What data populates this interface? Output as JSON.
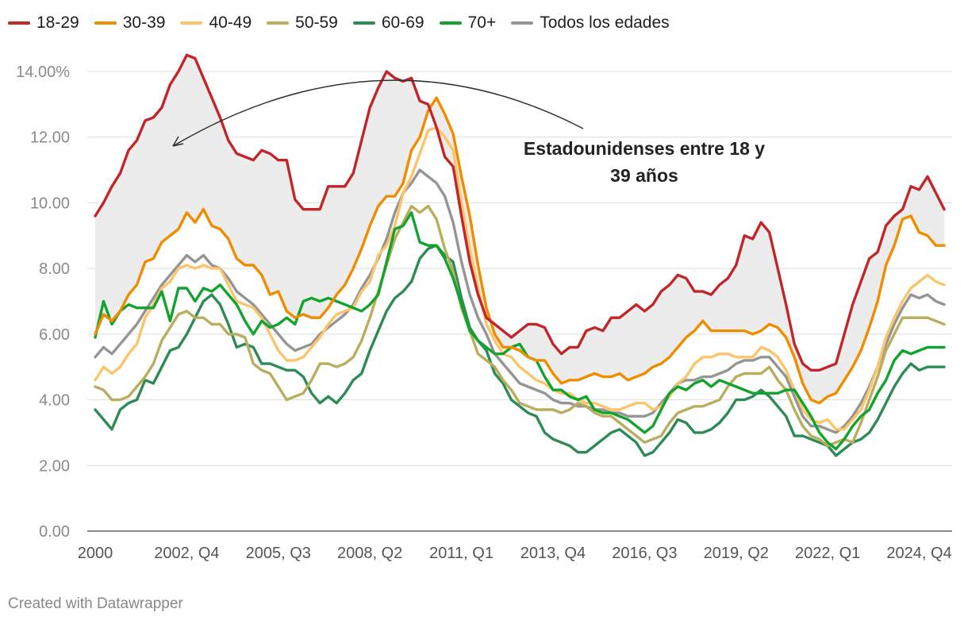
{
  "chart_data": {
    "type": "line",
    "ylim": [
      0,
      14
    ],
    "yticks": [
      0,
      2,
      4,
      6,
      8,
      10,
      12,
      14
    ],
    "ytick_labels": [
      "0.00",
      "2.00",
      "4.00",
      "6.00",
      "8.00",
      "10.00",
      "12.00",
      "14.00%"
    ],
    "x_tick_labels": [
      "2000",
      "2002, Q4",
      "2005, Q3",
      "2008, Q2",
      "2011, Q1",
      "2013, Q4",
      "2016, Q3",
      "2019, Q2",
      "2022, Q1",
      "2024, Q4"
    ],
    "x_tick_index": [
      0,
      11,
      22,
      33,
      44,
      55,
      66,
      77,
      88,
      99
    ],
    "x_start": "2000, Q1",
    "x_end": "2024, Q4",
    "grid": true,
    "legend_position": "top",
    "shaded_band": {
      "between": [
        "30-39",
        "18-29"
      ],
      "color": "#ececec"
    },
    "annotation": {
      "lines": [
        "Estadounidenses entre 18 y",
        "39 años"
      ]
    },
    "series": [
      {
        "name": "18-29",
        "color": "#c2262a",
        "values": [
          9.6,
          10.0,
          10.5,
          10.9,
          11.6,
          11.9,
          12.5,
          12.6,
          12.9,
          13.6,
          14.0,
          14.5,
          14.4,
          13.8,
          13.2,
          12.6,
          11.9,
          11.5,
          11.4,
          11.3,
          11.6,
          11.5,
          11.3,
          11.3,
          10.1,
          9.8,
          9.8,
          9.8,
          10.5,
          10.5,
          10.5,
          10.9,
          11.9,
          12.9,
          13.5,
          14.0,
          13.8,
          13.7,
          13.8,
          13.1,
          13.0,
          12.3,
          11.4,
          11.1,
          9.6,
          8.2,
          7.2,
          6.5,
          6.3,
          6.1,
          5.9,
          6.1,
          6.3,
          6.3,
          6.2,
          5.7,
          5.4,
          5.6,
          5.6,
          6.1,
          6.2,
          6.1,
          6.5,
          6.5,
          6.7,
          6.9,
          6.7,
          6.9,
          7.3,
          7.5,
          7.8,
          7.7,
          7.3,
          7.3,
          7.2,
          7.5,
          7.7,
          8.1,
          9.0,
          8.9,
          9.4,
          9.1,
          8.0,
          6.9,
          5.7,
          5.1,
          4.9,
          4.9,
          5.0,
          5.1,
          6.0,
          6.9,
          7.6,
          8.3,
          8.5,
          9.3,
          9.6,
          9.8,
          10.5,
          10.4,
          10.8,
          10.3,
          9.8
        ]
      },
      {
        "name": "30-39",
        "color": "#f08c00",
        "values": [
          6.0,
          6.6,
          6.4,
          6.7,
          7.2,
          7.5,
          8.2,
          8.3,
          8.8,
          9.0,
          9.2,
          9.7,
          9.4,
          9.8,
          9.3,
          9.2,
          8.9,
          8.3,
          8.1,
          8.1,
          7.8,
          7.2,
          7.3,
          6.7,
          6.5,
          6.6,
          6.5,
          6.5,
          6.8,
          7.2,
          7.5,
          8.0,
          8.6,
          9.3,
          9.9,
          10.2,
          10.2,
          10.6,
          11.6,
          12.0,
          12.8,
          13.2,
          12.7,
          12.1,
          10.8,
          9.6,
          8.1,
          6.8,
          6.0,
          5.6,
          5.6,
          5.5,
          5.3,
          5.2,
          5.2,
          4.8,
          4.5,
          4.6,
          4.6,
          4.7,
          4.8,
          4.7,
          4.7,
          4.8,
          4.6,
          4.7,
          4.8,
          5.0,
          5.1,
          5.3,
          5.6,
          5.9,
          6.1,
          6.4,
          6.1,
          6.1,
          6.1,
          6.1,
          6.1,
          6.0,
          6.1,
          6.3,
          6.2,
          5.9,
          5.3,
          4.5,
          4.0,
          3.9,
          4.1,
          4.2,
          4.6,
          5.0,
          5.5,
          6.2,
          7.0,
          8.1,
          8.7,
          9.5,
          9.6,
          9.1,
          9.0,
          8.7,
          8.7
        ]
      },
      {
        "name": "40-49",
        "color": "#fcc46b",
        "values": [
          4.6,
          5.0,
          4.8,
          5.0,
          5.4,
          5.7,
          6.5,
          6.9,
          7.4,
          7.6,
          8.0,
          8.1,
          8.0,
          8.1,
          8.0,
          8.0,
          7.5,
          7.0,
          6.9,
          6.8,
          6.5,
          6.0,
          5.5,
          5.2,
          5.2,
          5.3,
          5.6,
          5.9,
          6.3,
          6.6,
          6.7,
          6.8,
          7.3,
          7.6,
          8.4,
          8.7,
          9.3,
          10.3,
          10.8,
          11.5,
          12.2,
          12.3,
          12.0,
          11.6,
          10.0,
          8.6,
          7.4,
          6.3,
          5.8,
          5.4,
          5.3,
          5.0,
          4.8,
          4.6,
          4.5,
          4.3,
          4.2,
          4.2,
          4.0,
          3.9,
          3.9,
          3.8,
          3.7,
          3.7,
          3.8,
          3.9,
          3.9,
          3.7,
          3.8,
          4.1,
          4.5,
          4.7,
          5.1,
          5.3,
          5.3,
          5.4,
          5.4,
          5.3,
          5.3,
          5.3,
          5.6,
          5.5,
          5.3,
          4.9,
          4.3,
          3.7,
          3.4,
          3.3,
          3.4,
          3.1,
          3.1,
          3.4,
          3.7,
          4.3,
          5.0,
          5.9,
          6.5,
          7.0,
          7.4,
          7.6,
          7.8,
          7.6,
          7.5
        ]
      },
      {
        "name": "50-59",
        "color": "#b8ae5d",
        "values": [
          4.4,
          4.3,
          4.0,
          4.0,
          4.1,
          4.4,
          4.7,
          5.1,
          5.8,
          6.2,
          6.6,
          6.7,
          6.5,
          6.5,
          6.3,
          6.3,
          6.0,
          6.0,
          5.9,
          5.1,
          4.9,
          4.8,
          4.4,
          4.0,
          4.1,
          4.2,
          4.6,
          5.1,
          5.1,
          5.0,
          5.1,
          5.3,
          5.8,
          6.5,
          7.3,
          8.1,
          8.9,
          9.4,
          9.9,
          9.7,
          9.9,
          9.5,
          8.6,
          7.9,
          6.8,
          6.1,
          5.4,
          5.2,
          5.0,
          4.6,
          4.3,
          3.9,
          3.8,
          3.7,
          3.7,
          3.7,
          3.6,
          3.7,
          3.9,
          3.8,
          3.6,
          3.5,
          3.5,
          3.3,
          3.1,
          2.9,
          2.7,
          2.8,
          2.9,
          3.3,
          3.6,
          3.7,
          3.8,
          3.8,
          3.9,
          4.0,
          4.4,
          4.7,
          4.8,
          4.8,
          4.8,
          5.0,
          4.6,
          4.3,
          3.7,
          3.2,
          2.9,
          2.8,
          2.6,
          2.7,
          2.8,
          2.7,
          3.3,
          4.0,
          4.7,
          5.5,
          6.0,
          6.5,
          6.5,
          6.5,
          6.5,
          6.4,
          6.3
        ]
      },
      {
        "name": "60-69",
        "color": "#2e8b57",
        "values": [
          3.7,
          3.4,
          3.1,
          3.7,
          3.9,
          4.0,
          4.6,
          4.5,
          5.0,
          5.5,
          5.6,
          6.0,
          6.5,
          7.0,
          7.2,
          6.9,
          6.3,
          5.6,
          5.7,
          5.6,
          5.1,
          5.1,
          5.0,
          4.9,
          4.9,
          4.7,
          4.2,
          3.9,
          4.1,
          3.9,
          4.2,
          4.6,
          4.8,
          5.5,
          6.1,
          6.7,
          7.1,
          7.3,
          7.6,
          8.3,
          8.6,
          8.7,
          8.4,
          8.2,
          7.1,
          6.2,
          5.8,
          5.5,
          4.8,
          4.5,
          4.0,
          3.8,
          3.6,
          3.5,
          3.0,
          2.8,
          2.7,
          2.6,
          2.4,
          2.4,
          2.6,
          2.8,
          3.0,
          3.1,
          2.9,
          2.7,
          2.3,
          2.4,
          2.7,
          3.0,
          3.4,
          3.3,
          3.0,
          3.0,
          3.1,
          3.3,
          3.6,
          4.0,
          4.0,
          4.1,
          4.3,
          4.1,
          3.8,
          3.5,
          2.9,
          2.9,
          2.8,
          2.7,
          2.6,
          2.3,
          2.5,
          2.7,
          2.8,
          3.0,
          3.4,
          3.9,
          4.4,
          4.8,
          5.1,
          4.9,
          5.0,
          5.0,
          5.0
        ]
      },
      {
        "name": "70+",
        "color": "#12a32d",
        "values": [
          5.9,
          7.0,
          6.3,
          6.7,
          6.9,
          6.8,
          6.8,
          6.8,
          7.3,
          6.4,
          7.4,
          7.4,
          7.0,
          7.4,
          7.3,
          7.5,
          7.2,
          6.9,
          6.4,
          6.0,
          6.4,
          6.2,
          6.3,
          6.5,
          6.3,
          7.0,
          7.1,
          7.0,
          7.1,
          7.0,
          6.9,
          6.8,
          6.7,
          6.9,
          7.2,
          8.2,
          9.2,
          9.3,
          9.7,
          8.8,
          8.7,
          8.7,
          8.3,
          7.7,
          6.9,
          6.1,
          5.8,
          5.6,
          5.4,
          5.4,
          5.6,
          5.7,
          5.3,
          5.2,
          4.7,
          4.3,
          4.3,
          4.1,
          4.0,
          4.1,
          3.7,
          3.6,
          3.6,
          3.5,
          3.4,
          3.2,
          3.0,
          3.2,
          3.7,
          4.2,
          4.4,
          4.3,
          4.5,
          4.6,
          4.4,
          4.6,
          4.5,
          4.4,
          4.3,
          4.2,
          4.2,
          4.2,
          4.2,
          4.3,
          4.3,
          3.9,
          3.5,
          3.0,
          2.7,
          2.5,
          2.8,
          3.2,
          3.5,
          3.7,
          4.2,
          4.6,
          5.2,
          5.5,
          5.4,
          5.5,
          5.6,
          5.6,
          5.6
        ]
      },
      {
        "name": "Todos los edades",
        "color": "#959595",
        "values": [
          5.3,
          5.6,
          5.4,
          5.7,
          6.0,
          6.3,
          6.7,
          7.1,
          7.5,
          7.8,
          8.1,
          8.4,
          8.2,
          8.4,
          8.1,
          8.0,
          7.7,
          7.3,
          7.1,
          6.9,
          6.6,
          6.3,
          6.0,
          5.7,
          5.5,
          5.6,
          5.7,
          6.0,
          6.2,
          6.4,
          6.6,
          6.9,
          7.4,
          7.8,
          8.3,
          8.9,
          9.7,
          10.3,
          10.6,
          11.0,
          10.8,
          10.6,
          10.2,
          9.4,
          8.2,
          7.2,
          6.5,
          6.0,
          5.4,
          5.1,
          4.8,
          4.5,
          4.4,
          4.3,
          4.2,
          4.0,
          3.9,
          3.9,
          3.8,
          3.8,
          3.7,
          3.7,
          3.6,
          3.6,
          3.5,
          3.5,
          3.5,
          3.6,
          3.9,
          4.2,
          4.5,
          4.6,
          4.6,
          4.7,
          4.7,
          4.8,
          4.9,
          5.1,
          5.2,
          5.2,
          5.3,
          5.3,
          5.0,
          4.7,
          4.1,
          3.5,
          3.2,
          3.2,
          3.1,
          3.0,
          3.2,
          3.5,
          3.9,
          4.4,
          5.0,
          5.7,
          6.3,
          6.8,
          7.2,
          7.1,
          7.2,
          7.0,
          6.9
        ]
      }
    ]
  },
  "legend": [
    {
      "label": "18-29",
      "color": "#c2262a"
    },
    {
      "label": "30-39",
      "color": "#f08c00"
    },
    {
      "label": "40-49",
      "color": "#fcc46b"
    },
    {
      "label": "50-59",
      "color": "#b8ae5d"
    },
    {
      "label": "60-69",
      "color": "#2e8b57"
    },
    {
      "label": "70+",
      "color": "#12a32d"
    },
    {
      "label": "Todos los edades",
      "color": "#959595"
    }
  ],
  "footer": {
    "credit": "Created with Datawrapper"
  }
}
